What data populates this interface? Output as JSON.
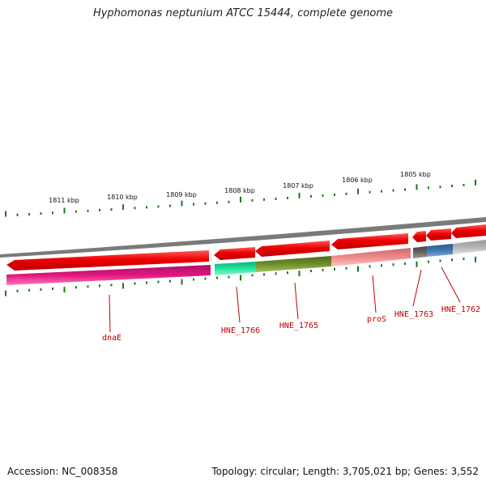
{
  "title": "Hyphomonas neptunium ATCC 15444, complete genome",
  "footer": {
    "accession": "Accession: NC_008358",
    "summary": "Topology: circular; Length: 3,705,021 bp; Genes: 3,552"
  },
  "ruler_labels": [
    "1811 kbp",
    "1810 kbp",
    "1809 kbp",
    "1808 kbp",
    "1807 kbp",
    "1806 kbp",
    "1805 kbp"
  ],
  "gene_labels": [
    "dnaE",
    "HNE_1766",
    "HNE_1765",
    "proS",
    "HNE_1763",
    "HNE_1762"
  ],
  "colors": {
    "backbone": "#7a7a7a",
    "tick": "#1a7a1a",
    "gene_arrow": "#ee0000",
    "label": "#c00000",
    "dnaE": "#e0157e",
    "HNE_1766": "#20e6a0",
    "HNE_1765": "#6e8e2a",
    "proS": "#ef8a8a",
    "HNE_1763": "#666666",
    "HNE_1762_blue": "#3d78b0",
    "tail": "#b4b4b4"
  }
}
